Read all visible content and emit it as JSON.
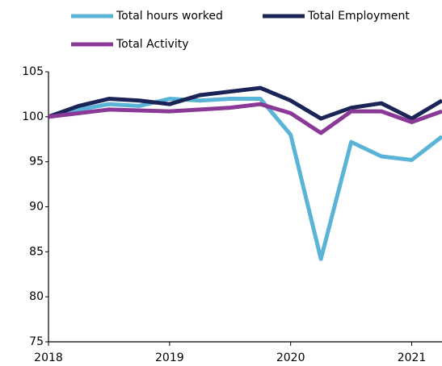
{
  "chart_data": {
    "type": "line",
    "x": [
      2018,
      2018.25,
      2018.5,
      2018.75,
      2019,
      2019.25,
      2019.5,
      2019.75,
      2020,
      2020.25,
      2020.5,
      2020.75,
      2021,
      2021.25
    ],
    "xlim": [
      2018,
      2021.25
    ],
    "xticks": [
      2018,
      2019,
      2020,
      2021
    ],
    "ylim": [
      75,
      105
    ],
    "yticks": [
      75,
      80,
      85,
      90,
      95,
      100,
      105
    ],
    "series": [
      {
        "name": "Total hours worked",
        "color": "#5ab4d8",
        "values": [
          100,
          100.8,
          101.4,
          101.2,
          102,
          101.8,
          102,
          102,
          98,
          84.2,
          97.2,
          95.6,
          95.2,
          97.8
        ]
      },
      {
        "name": "Total Employment",
        "color": "#1b2456",
        "values": [
          100,
          101.2,
          102,
          101.8,
          101.4,
          102.4,
          102.8,
          103.2,
          101.8,
          99.8,
          101,
          101.5,
          99.8,
          101.8
        ]
      },
      {
        "name": "Total Activity",
        "color": "#8a3a96",
        "values": [
          100,
          100.4,
          100.8,
          100.7,
          100.6,
          100.8,
          101,
          101.4,
          100.4,
          98.2,
          100.6,
          100.6,
          99.4,
          100.6
        ]
      }
    ]
  }
}
